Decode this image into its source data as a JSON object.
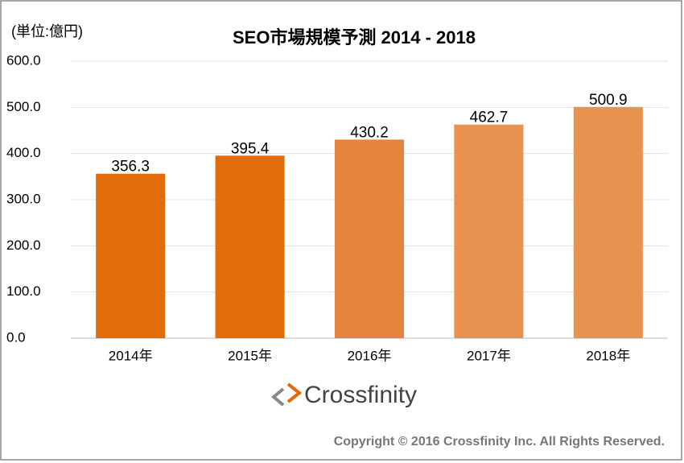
{
  "chart_data": {
    "type": "bar",
    "title": "SEO市場規模予測 2014 - 2018",
    "unit_label": "(単位:億円)",
    "categories": [
      "2014年",
      "2015年",
      "2016年",
      "2017年",
      "2018年"
    ],
    "values": [
      356.3,
      395.4,
      430.2,
      462.7,
      500.9
    ],
    "colors": [
      "#e36c0a",
      "#e36c0a",
      "#e5843e",
      "#e8924f",
      "#e8924f"
    ],
    "ylim": [
      0,
      600
    ],
    "yticks": [
      {
        "value": 0,
        "label": "0.0"
      },
      {
        "value": 100,
        "label": "100.0"
      },
      {
        "value": 200,
        "label": "200.0"
      },
      {
        "value": 300,
        "label": "300.0"
      },
      {
        "value": 400,
        "label": "400.0"
      },
      {
        "value": 500,
        "label": "500.0"
      },
      {
        "value": 600,
        "label": "600.0"
      }
    ],
    "grid": true,
    "logo": "Crossfinity",
    "copyright": "Copyright  © 2016 Crossfinity  Inc. All Rights Reserved."
  }
}
